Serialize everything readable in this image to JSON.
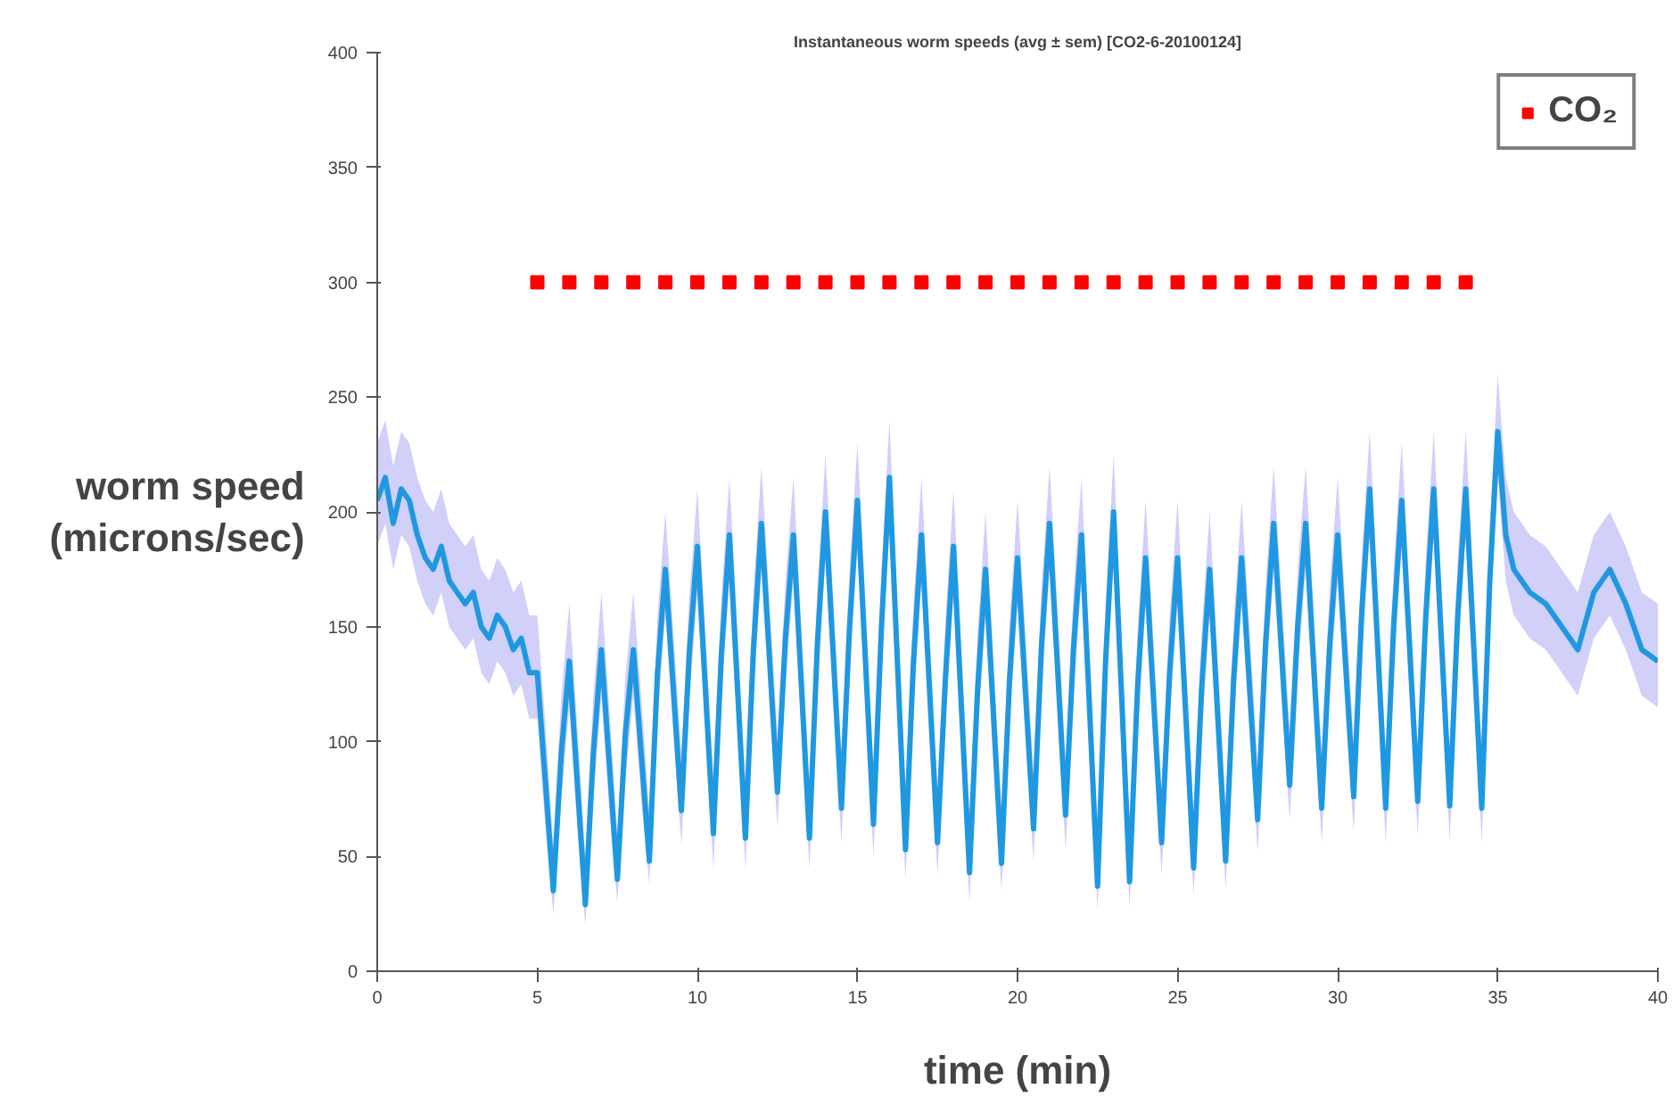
{
  "chart_data": {
    "type": "line",
    "title": "Instantaneous worm speeds (avg ± sem) [CO2-6-20100124]",
    "xlabel": "time (min)",
    "ylabel": "worm speed\n(microns/sec)",
    "xlim": [
      0,
      40
    ],
    "ylim": [
      0,
      400
    ],
    "xticks": [
      0,
      5,
      10,
      15,
      20,
      25,
      30,
      35,
      40
    ],
    "yticks": [
      0,
      50,
      100,
      150,
      200,
      250,
      300,
      350,
      400
    ],
    "grid": false,
    "legend": "top right",
    "series": [
      {
        "color": "#1f98e0",
        "x": [
          0,
          0.25,
          0.5,
          0.75,
          1,
          1.25,
          1.5,
          1.75,
          2,
          2.25,
          2.5,
          2.75,
          3,
          3.25,
          3.5,
          3.75,
          4,
          4.25,
          4.5,
          4.75,
          5,
          5.25,
          5.5,
          5.75,
          6,
          6.25,
          6.5,
          6.75,
          7,
          7.25,
          7.5,
          7.75,
          8,
          8.25,
          8.5,
          8.75,
          9,
          9.25,
          9.5,
          9.75,
          10,
          10.25,
          10.5,
          10.75,
          11,
          11.25,
          11.5,
          11.75,
          12,
          12.25,
          12.5,
          12.75,
          13,
          13.25,
          13.5,
          13.75,
          14,
          14.25,
          14.5,
          14.75,
          15,
          15.25,
          15.5,
          15.75,
          16,
          16.25,
          16.5,
          16.75,
          17,
          17.25,
          17.5,
          17.75,
          18,
          18.25,
          18.5,
          18.75,
          19,
          19.25,
          19.5,
          19.75,
          20,
          20.25,
          20.5,
          20.75,
          21,
          21.25,
          21.5,
          21.75,
          22,
          22.25,
          22.5,
          22.75,
          23,
          23.25,
          23.5,
          23.75,
          24,
          24.25,
          24.5,
          24.75,
          25,
          25.25,
          25.5,
          25.75,
          26,
          26.25,
          26.5,
          26.75,
          27,
          27.25,
          27.5,
          27.75,
          28,
          28.25,
          28.5,
          28.75,
          29,
          29.25,
          29.5,
          29.75,
          30,
          30.25,
          30.5,
          30.75,
          31,
          31.25,
          31.5,
          31.75,
          32,
          32.25,
          32.5,
          32.75,
          33,
          33.25,
          33.5,
          33.75,
          34,
          34.25,
          34.5,
          34.75,
          35,
          35.25,
          35.5,
          35.75,
          36,
          36.5,
          37,
          37.5,
          38,
          38.5,
          39,
          39.5,
          40
        ],
        "values": [
          205,
          215,
          195,
          210,
          205,
          190,
          180,
          175,
          185,
          170,
          165,
          160,
          165,
          150,
          145,
          155,
          150,
          140,
          145,
          130,
          130,
          83,
          35,
          95,
          135,
          82,
          29,
          95,
          140,
          90,
          40,
          103,
          140,
          94,
          48,
          129,
          175,
          123,
          70,
          139,
          185,
          123,
          60,
          138,
          190,
          124,
          58,
          140,
          195,
          137,
          78,
          145,
          190,
          124,
          58,
          143,
          200,
          136,
          71,
          149,
          205,
          135,
          64,
          150,
          215,
          134,
          53,
          135,
          190,
          123,
          56,
          128,
          185,
          114,
          43,
          122,
          175,
          111,
          47,
          127,
          180,
          121,
          62,
          142,
          195,
          132,
          68,
          141,
          190,
          114,
          37,
          135,
          200,
          120,
          39,
          124,
          180,
          118,
          56,
          130,
          180,
          113,
          45,
          123,
          175,
          112,
          48,
          127,
          180,
          123,
          66,
          143,
          195,
          138,
          81,
          150,
          195,
          133,
          71,
          142,
          190,
          133,
          76,
          156,
          210,
          141,
          71,
          151,
          205,
          140,
          74,
          154,
          210,
          141,
          72,
          155,
          210,
          141,
          71,
          170,
          235,
          190,
          175,
          170,
          165,
          160,
          150,
          140,
          165,
          175,
          160,
          140,
          135
        ],
        "lower": [
          185,
          195,
          175,
          190,
          185,
          170,
          160,
          155,
          165,
          150,
          145,
          140,
          145,
          130,
          125,
          135,
          130,
          120,
          125,
          110,
          110,
          63,
          25,
          75,
          115,
          62,
          20,
          75,
          120,
          70,
          30,
          83,
          120,
          74,
          38,
          109,
          155,
          103,
          55,
          119,
          165,
          103,
          45,
          118,
          170,
          104,
          45,
          120,
          175,
          117,
          63,
          125,
          170,
          104,
          45,
          123,
          180,
          116,
          56,
          129,
          185,
          115,
          50,
          130,
          195,
          114,
          40,
          115,
          170,
          103,
          42,
          108,
          165,
          94,
          30,
          102,
          155,
          91,
          35,
          107,
          160,
          101,
          48,
          122,
          175,
          112,
          53,
          121,
          170,
          94,
          27,
          115,
          180,
          100,
          28,
          104,
          160,
          98,
          42,
          110,
          160,
          93,
          33,
          103,
          155,
          92,
          36,
          107,
          160,
          103,
          52,
          123,
          175,
          118,
          66,
          130,
          175,
          113,
          56,
          122,
          170,
          113,
          61,
          136,
          190,
          121,
          56,
          131,
          185,
          120,
          59,
          134,
          190,
          121,
          57,
          135,
          190,
          121,
          56,
          150,
          215,
          170,
          155,
          150,
          145,
          140,
          130,
          120,
          145,
          155,
          140,
          120,
          115
        ],
        "upper": [
          230,
          240,
          220,
          235,
          230,
          215,
          205,
          200,
          210,
          195,
          190,
          185,
          190,
          175,
          170,
          180,
          175,
          165,
          170,
          155,
          155,
          108,
          55,
          120,
          160,
          107,
          50,
          120,
          165,
          115,
          60,
          128,
          165,
          119,
          70,
          154,
          200,
          148,
          95,
          164,
          210,
          148,
          85,
          163,
          215,
          149,
          82,
          165,
          220,
          162,
          102,
          170,
          215,
          149,
          82,
          168,
          225,
          161,
          95,
          174,
          230,
          160,
          88,
          175,
          240,
          159,
          78,
          160,
          215,
          148,
          80,
          153,
          210,
          139,
          68,
          147,
          200,
          136,
          70,
          152,
          205,
          146,
          86,
          167,
          220,
          157,
          92,
          166,
          215,
          139,
          60,
          160,
          225,
          145,
          62,
          149,
          205,
          143,
          80,
          155,
          205,
          138,
          68,
          148,
          200,
          137,
          72,
          152,
          205,
          148,
          90,
          168,
          220,
          163,
          105,
          175,
          220,
          158,
          95,
          167,
          215,
          158,
          100,
          181,
          235,
          166,
          95,
          176,
          230,
          165,
          98,
          179,
          235,
          166,
          96,
          180,
          235,
          166,
          95,
          195,
          260,
          215,
          200,
          195,
          190,
          185,
          175,
          165,
          190,
          200,
          185,
          165,
          160
        ]
      },
      {
        "name": "CO₂",
        "type": "scatter",
        "marker": "square",
        "color": "#ff0000",
        "x": [
          5,
          6,
          7,
          8,
          9,
          10,
          11,
          12,
          13,
          14,
          15,
          16,
          17,
          18,
          19,
          20,
          21,
          22,
          23,
          24,
          25,
          26,
          27,
          28,
          29,
          30,
          31,
          32,
          33,
          34
        ],
        "values": [
          300,
          300,
          300,
          300,
          300,
          300,
          300,
          300,
          300,
          300,
          300,
          300,
          300,
          300,
          300,
          300,
          300,
          300,
          300,
          300,
          300,
          300,
          300,
          300,
          300,
          300,
          300,
          300,
          300,
          300
        ]
      }
    ]
  }
}
